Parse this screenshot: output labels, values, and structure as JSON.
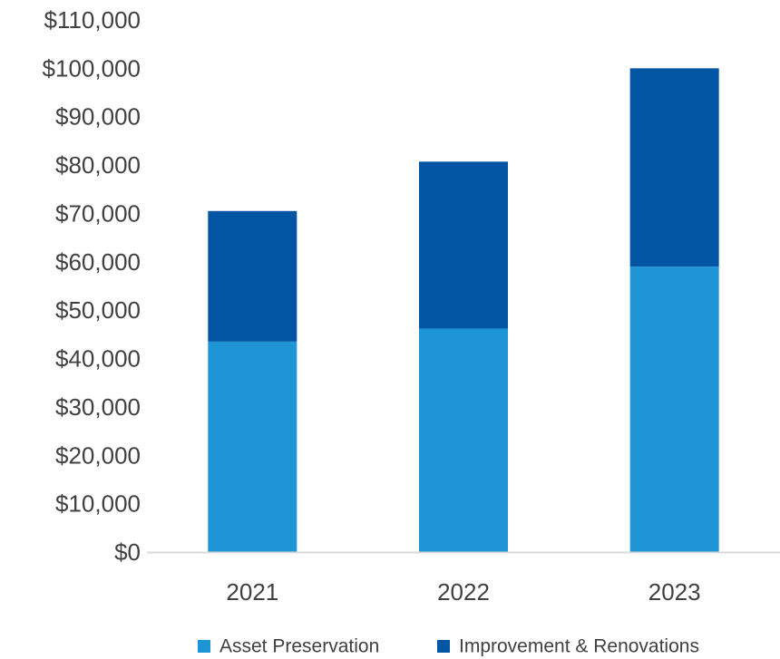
{
  "chart_data": {
    "type": "bar",
    "stacked": true,
    "categories": [
      "2021",
      "2022",
      "2023"
    ],
    "series": [
      {
        "name": "Asset Preservation",
        "values": [
          43500,
          46200,
          59000
        ],
        "color": "#1e96d6"
      },
      {
        "name": "Improvement & Renovations",
        "values": [
          27000,
          34500,
          41000
        ],
        "color": "#0255a2"
      }
    ],
    "ylim": [
      0,
      110000
    ],
    "y_ticks": [
      "$0",
      "$10,000",
      "$20,000",
      "$30,000",
      "$40,000",
      "$50,000",
      "$60,000",
      "$70,000",
      "$80,000",
      "$90,000",
      "$100,000",
      "$110,000"
    ],
    "grid": false,
    "legend_position": "bottom",
    "axis_color": "#d9d9d9"
  }
}
